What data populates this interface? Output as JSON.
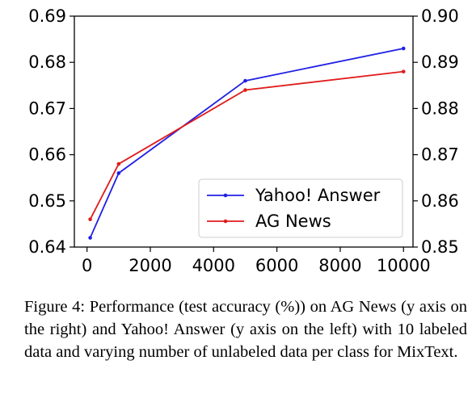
{
  "chart_data": {
    "type": "line",
    "x": [
      100,
      1000,
      5000,
      10000
    ],
    "x_ticks": [
      "0",
      "2000",
      "4000",
      "6000",
      "8000",
      "10000"
    ],
    "x_tick_values": [
      0,
      2000,
      4000,
      6000,
      8000,
      10000
    ],
    "xlim": [
      -400,
      10300
    ],
    "left_axis": {
      "ylim": [
        0.64,
        0.69
      ],
      "ticks": [
        "0.64",
        "0.65",
        "0.66",
        "0.67",
        "0.68",
        "0.69"
      ],
      "tick_values": [
        0.64,
        0.65,
        0.66,
        0.67,
        0.68,
        0.69
      ]
    },
    "right_axis": {
      "ylim": [
        0.85,
        0.9
      ],
      "ticks": [
        "0.85",
        "0.86",
        "0.87",
        "0.88",
        "0.89",
        "0.90"
      ],
      "tick_values": [
        0.85,
        0.86,
        0.87,
        0.88,
        0.89,
        0.9
      ]
    },
    "series": [
      {
        "name": "Yahoo! Answer",
        "axis": "left",
        "color": "#1f1fe6",
        "values": [
          0.642,
          0.656,
          0.676,
          0.683
        ]
      },
      {
        "name": "AG News",
        "axis": "right",
        "color": "#e01b1b",
        "values": [
          0.856,
          0.868,
          0.884,
          0.888
        ]
      }
    ],
    "legend_position": "lower-right",
    "grid": false
  },
  "caption": "Figure 4: Performance (test accuracy (%)) on AG News (y axis on the right) and Yahoo!  Answer (y axis on the left) with 10 labeled data and varying number of unlabeled data per class for MixText."
}
